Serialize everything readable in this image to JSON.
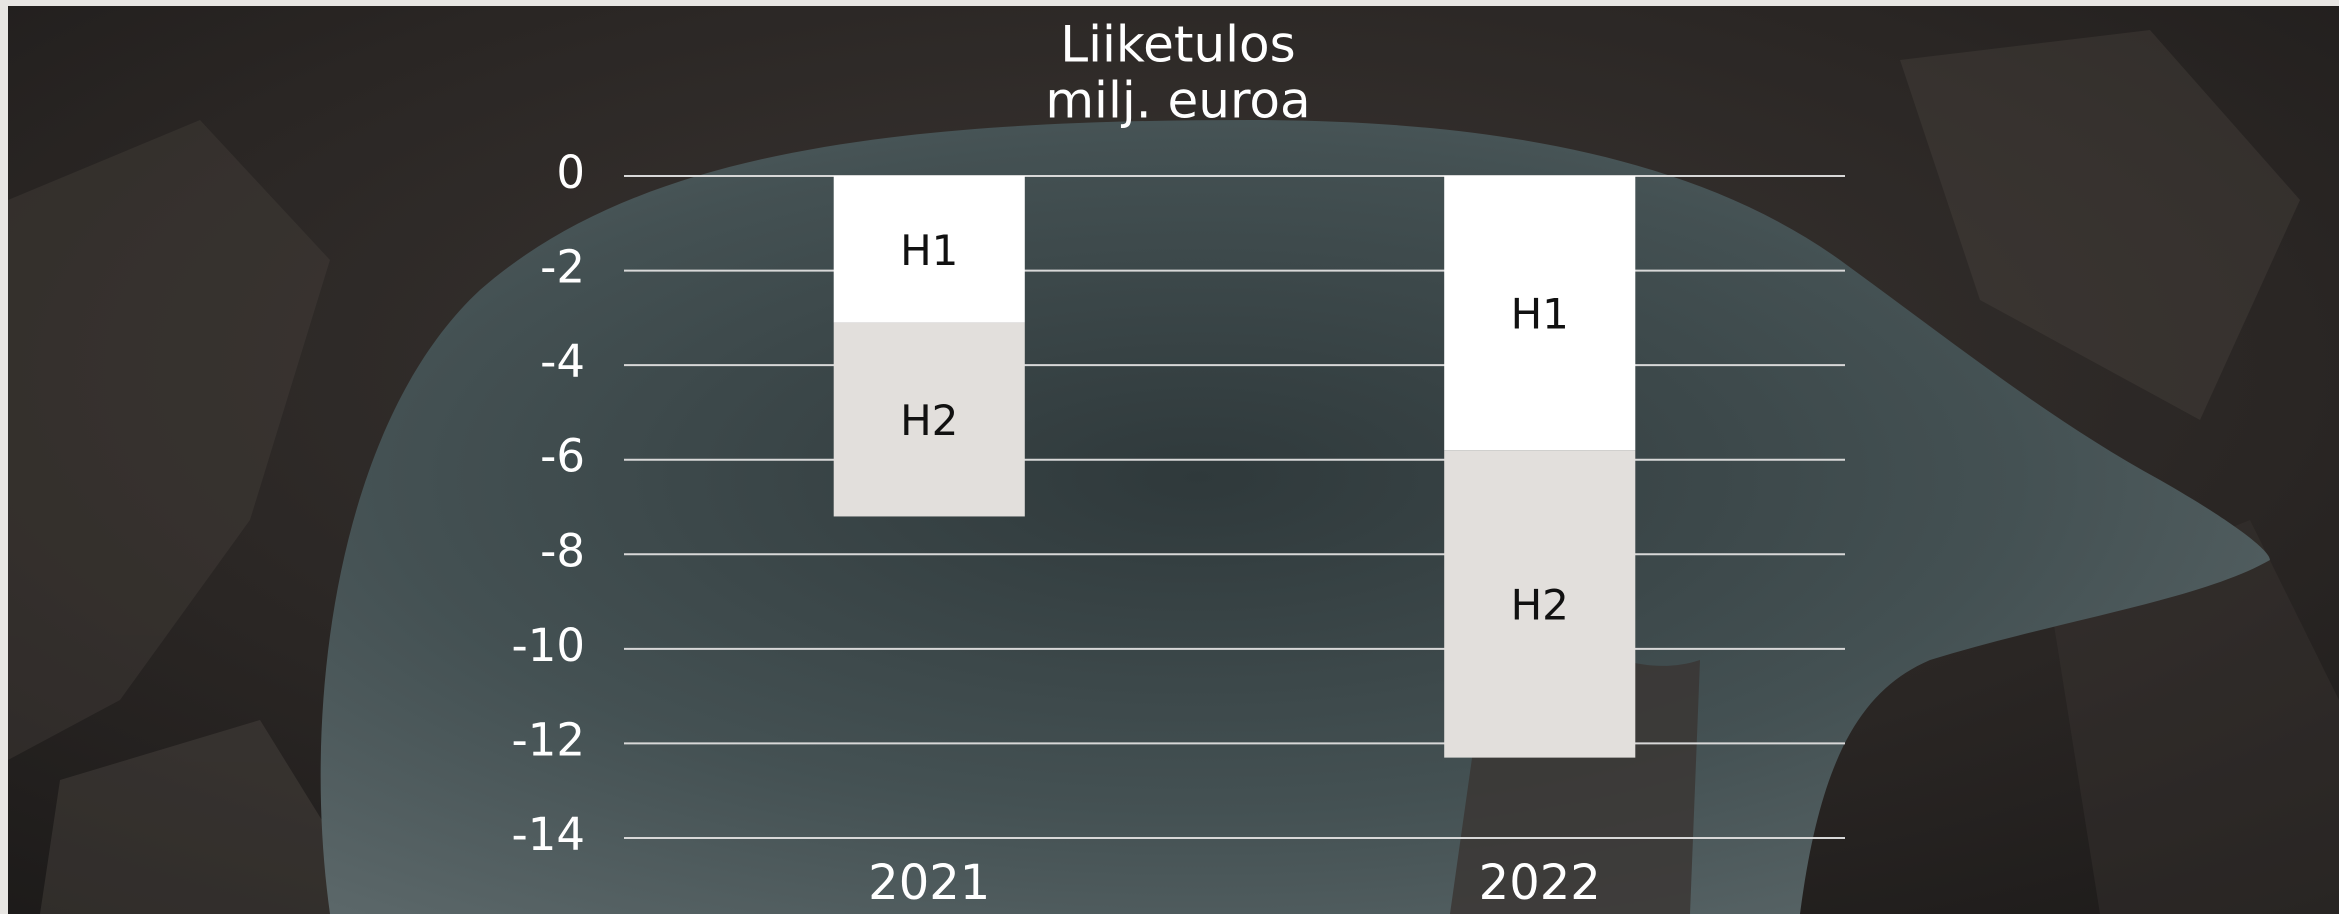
{
  "chart_data": {
    "type": "bar",
    "stacked": true,
    "title": "Liiketulos",
    "subtitle": "milj. euroa",
    "categories": [
      "2021",
      "2022"
    ],
    "series": [
      {
        "name": "H1",
        "color": "#ffffff",
        "values": [
          -3.1,
          -5.8
        ]
      },
      {
        "name": "H2",
        "color": "#e2dfdc",
        "values": [
          -4.1,
          -6.5
        ]
      }
    ],
    "ylim": [
      -14,
      0
    ],
    "yticks": [
      0,
      -2,
      -4,
      -6,
      -8,
      -10,
      -12,
      -14
    ],
    "grid": true
  }
}
